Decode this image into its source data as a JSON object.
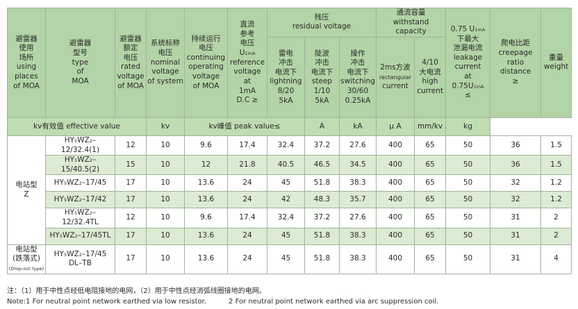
{
  "headers": {
    "places": "避雷器使用场所 using places of MOA",
    "type": "避雷器型号 type of MOA",
    "rated": "避雷器额定电压 rated voltage of MOA",
    "nominal": "系统标称电压 nominal voltage of system",
    "continuing": "持续运行电压 continuing operating voltage of MOA",
    "dc_ref": "直流参考电压 U1mA reference voltage at 1mA D.C ≥",
    "residual": "残压 residual voltage",
    "lightning": "雷电冲击电流下 lightning 8/20 5kA",
    "steep": "陡波冲击电流下 steep 1/10 5kA",
    "switching": "操作冲击电流下 switching 30/60 0.25kA",
    "withstand": "通流容量 withstand capacity",
    "rect": "2ms方波 rectangular current",
    "high": "4/10 大电流 high current",
    "leakage": "0.75 U1mA 下最大泄漏电流 leakage current at 0.75U1mA ≤",
    "creepage": "爬电比距 creepage ratio distance ≥",
    "weight": "重量 weight"
  },
  "units": {
    "kv_eff": "kv有效值  effective value",
    "kv": "kv",
    "kv_peak": "kv峰值  peak value≤",
    "a": "A",
    "ka": "kA",
    "ua": "μ A",
    "mmkv": "mm/kv",
    "kg": "kg"
  },
  "groups": {
    "station": "电站型 Z",
    "dropout_cn": "电站型 (跌落式)",
    "dropout_en": "(Drop-out type)"
  },
  "rows": [
    {
      "model": "HY5WZ2–12/32.4(1)",
      "rated": "12",
      "nominal": "10",
      "cont": "9.6",
      "dc": "17.4",
      "light": "32.4",
      "steep": "37.2",
      "switch": "27.6",
      "rect": "400",
      "high": "65",
      "leak": "50",
      "creep": "36",
      "weight": "1.5"
    },
    {
      "model": "HY5WZ2–15/40.5(2)",
      "rated": "15",
      "nominal": "10",
      "cont": "12",
      "dc": "21.8",
      "light": "40.5",
      "steep": "46.5",
      "switch": "34.5",
      "rect": "400",
      "high": "65",
      "leak": "50",
      "creep": "36",
      "weight": "1.5"
    },
    {
      "model": "HY5WZ2–17/45",
      "rated": "17",
      "nominal": "10",
      "cont": "13.6",
      "dc": "24",
      "light": "45",
      "steep": "51.8",
      "switch": "38.3",
      "rect": "400",
      "high": "65",
      "leak": "50",
      "creep": "32",
      "weight": "1.2"
    },
    {
      "model": "HY5WZ2–17/42",
      "rated": "17",
      "nominal": "10",
      "cont": "13.6",
      "dc": "24",
      "light": "42",
      "steep": "48.3",
      "switch": "35.7",
      "rect": "400",
      "high": "65",
      "leak": "50",
      "creep": "32",
      "weight": "1.2"
    },
    {
      "model": "HY5WZ2–12/32.4TL",
      "rated": "12",
      "nominal": "10",
      "cont": "9.6",
      "dc": "17.4",
      "light": "32.4",
      "steep": "37.2",
      "switch": "27.6",
      "rect": "400",
      "high": "65",
      "leak": "50",
      "creep": "31",
      "weight": "2"
    },
    {
      "model": "HY5WZ2–17/45TL",
      "rated": "17",
      "nominal": "10",
      "cont": "13.6",
      "dc": "24",
      "light": "45",
      "steep": "51.8",
      "switch": "38.3",
      "rect": "400",
      "high": "65",
      "leak": "50",
      "creep": "31",
      "weight": "2"
    },
    {
      "model": "HY5WZ2–17/45 DL–TB",
      "rated": "17",
      "nominal": "10",
      "cont": "13.6",
      "dc": "24",
      "light": "45",
      "steep": "51.8",
      "switch": "38.3",
      "rect": "400",
      "high": "65",
      "leak": "50",
      "creep": "31",
      "weight": "4"
    }
  ],
  "notes": {
    "cn": "注：（1）用于中性点经低电阻接地的电网，（2）用于中性点经消弧线圈接地的电网。",
    "en1": "Note:1 For neutral point network earthed via low resistor.",
    "en2": "2 For neutral point network earthed via arc suppression coil."
  },
  "colors": {
    "header": "#b3d4a6",
    "alt_row": "#dcebd3",
    "border": "#9fb39a"
  }
}
